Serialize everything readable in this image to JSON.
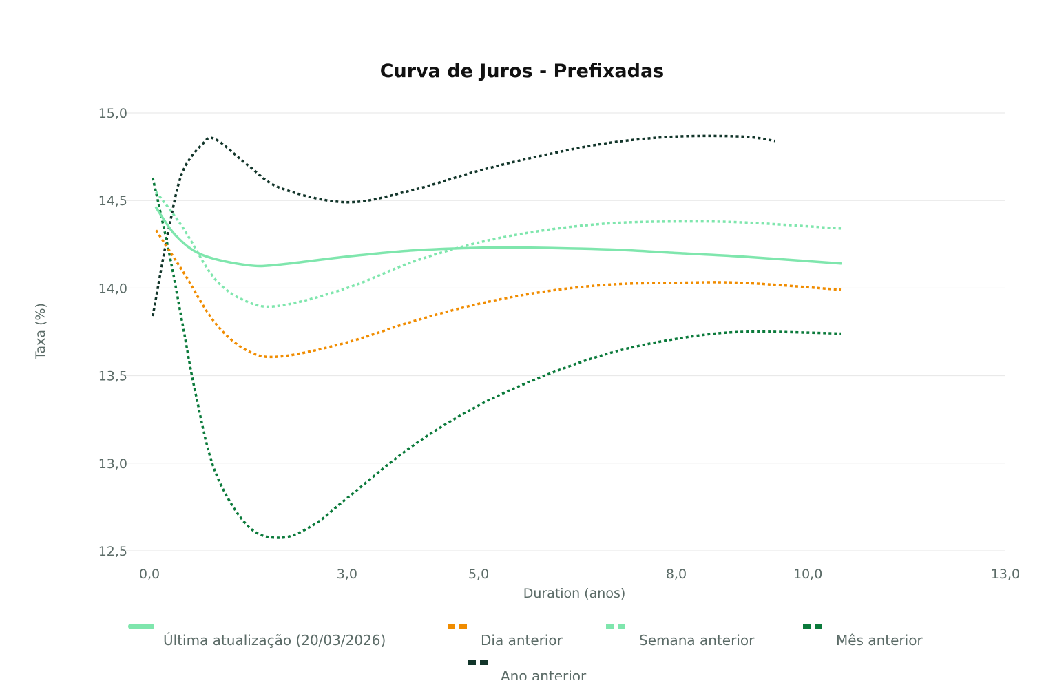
{
  "chart_data": {
    "type": "line",
    "title": "Curva de Juros - Prefixadas",
    "xlabel": "Duration (anos)",
    "ylabel": "Taxa (%)",
    "xlim": [
      0,
      13
    ],
    "ylim": [
      12.5,
      15.0
    ],
    "x_ticks": [
      0,
      3,
      5,
      8,
      10,
      13
    ],
    "x_tick_labels": [
      "0,0",
      "3,0",
      "5,0",
      "8,0",
      "10,0",
      "13,0"
    ],
    "y_ticks": [
      15.0,
      14.5,
      14.0,
      13.5,
      13.0,
      12.5
    ],
    "y_tick_labels": [
      "15,0",
      "14,5",
      "14,0",
      "13,5",
      "13,0",
      "12,5"
    ],
    "grid": true,
    "legend_position": "bottom",
    "series": [
      {
        "name": "Última atualização (20/03/2026)",
        "color": "#7fe6ad",
        "style": "solid",
        "points": [
          [
            0.1,
            14.46
          ],
          [
            0.4,
            14.3
          ],
          [
            0.8,
            14.19
          ],
          [
            1.5,
            14.13
          ],
          [
            2.0,
            14.135
          ],
          [
            3.0,
            14.18
          ],
          [
            4.0,
            14.215
          ],
          [
            5.0,
            14.23
          ],
          [
            5.5,
            14.232
          ],
          [
            7.0,
            14.22
          ],
          [
            8.0,
            14.2
          ],
          [
            9.0,
            14.18
          ],
          [
            10.5,
            14.14
          ]
        ]
      },
      {
        "name": "Dia anterior",
        "color": "#f08c00",
        "style": "dotted",
        "points": [
          [
            0.1,
            14.33
          ],
          [
            0.5,
            14.1
          ],
          [
            1.0,
            13.8
          ],
          [
            1.5,
            13.64
          ],
          [
            2.0,
            13.61
          ],
          [
            3.0,
            13.69
          ],
          [
            4.0,
            13.81
          ],
          [
            5.0,
            13.91
          ],
          [
            6.0,
            13.98
          ],
          [
            7.0,
            14.02
          ],
          [
            8.0,
            14.03
          ],
          [
            9.0,
            14.03
          ],
          [
            10.5,
            13.99
          ]
        ]
      },
      {
        "name": "Semana anterior",
        "color": "#7fe6ad",
        "style": "dotted",
        "points": [
          [
            0.1,
            14.55
          ],
          [
            0.5,
            14.35
          ],
          [
            1.0,
            14.05
          ],
          [
            1.5,
            13.92
          ],
          [
            2.0,
            13.9
          ],
          [
            3.0,
            14.0
          ],
          [
            4.0,
            14.15
          ],
          [
            5.0,
            14.26
          ],
          [
            6.0,
            14.33
          ],
          [
            7.0,
            14.37
          ],
          [
            8.0,
            14.38
          ],
          [
            9.0,
            14.375
          ],
          [
            10.5,
            14.34
          ]
        ]
      },
      {
        "name": "Mês anterior",
        "color": "#0b7a3b",
        "style": "dotted",
        "points": [
          [
            0.05,
            14.63
          ],
          [
            0.3,
            14.2
          ],
          [
            0.5,
            13.8
          ],
          [
            0.7,
            13.4
          ],
          [
            1.0,
            12.95
          ],
          [
            1.5,
            12.64
          ],
          [
            2.0,
            12.575
          ],
          [
            2.5,
            12.65
          ],
          [
            3.0,
            12.8
          ],
          [
            4.0,
            13.1
          ],
          [
            5.0,
            13.33
          ],
          [
            6.0,
            13.5
          ],
          [
            7.0,
            13.63
          ],
          [
            8.0,
            13.71
          ],
          [
            9.0,
            13.75
          ],
          [
            10.5,
            13.74
          ]
        ]
      },
      {
        "name": "Ano anterior",
        "color": "#12352a",
        "style": "dotted",
        "points": [
          [
            0.05,
            13.84
          ],
          [
            0.3,
            14.35
          ],
          [
            0.5,
            14.66
          ],
          [
            0.8,
            14.82
          ],
          [
            1.0,
            14.85
          ],
          [
            1.5,
            14.7
          ],
          [
            2.0,
            14.57
          ],
          [
            3.0,
            14.49
          ],
          [
            4.0,
            14.56
          ],
          [
            5.0,
            14.67
          ],
          [
            6.0,
            14.76
          ],
          [
            7.0,
            14.83
          ],
          [
            8.0,
            14.865
          ],
          [
            9.0,
            14.865
          ],
          [
            9.5,
            14.84
          ]
        ]
      }
    ]
  }
}
